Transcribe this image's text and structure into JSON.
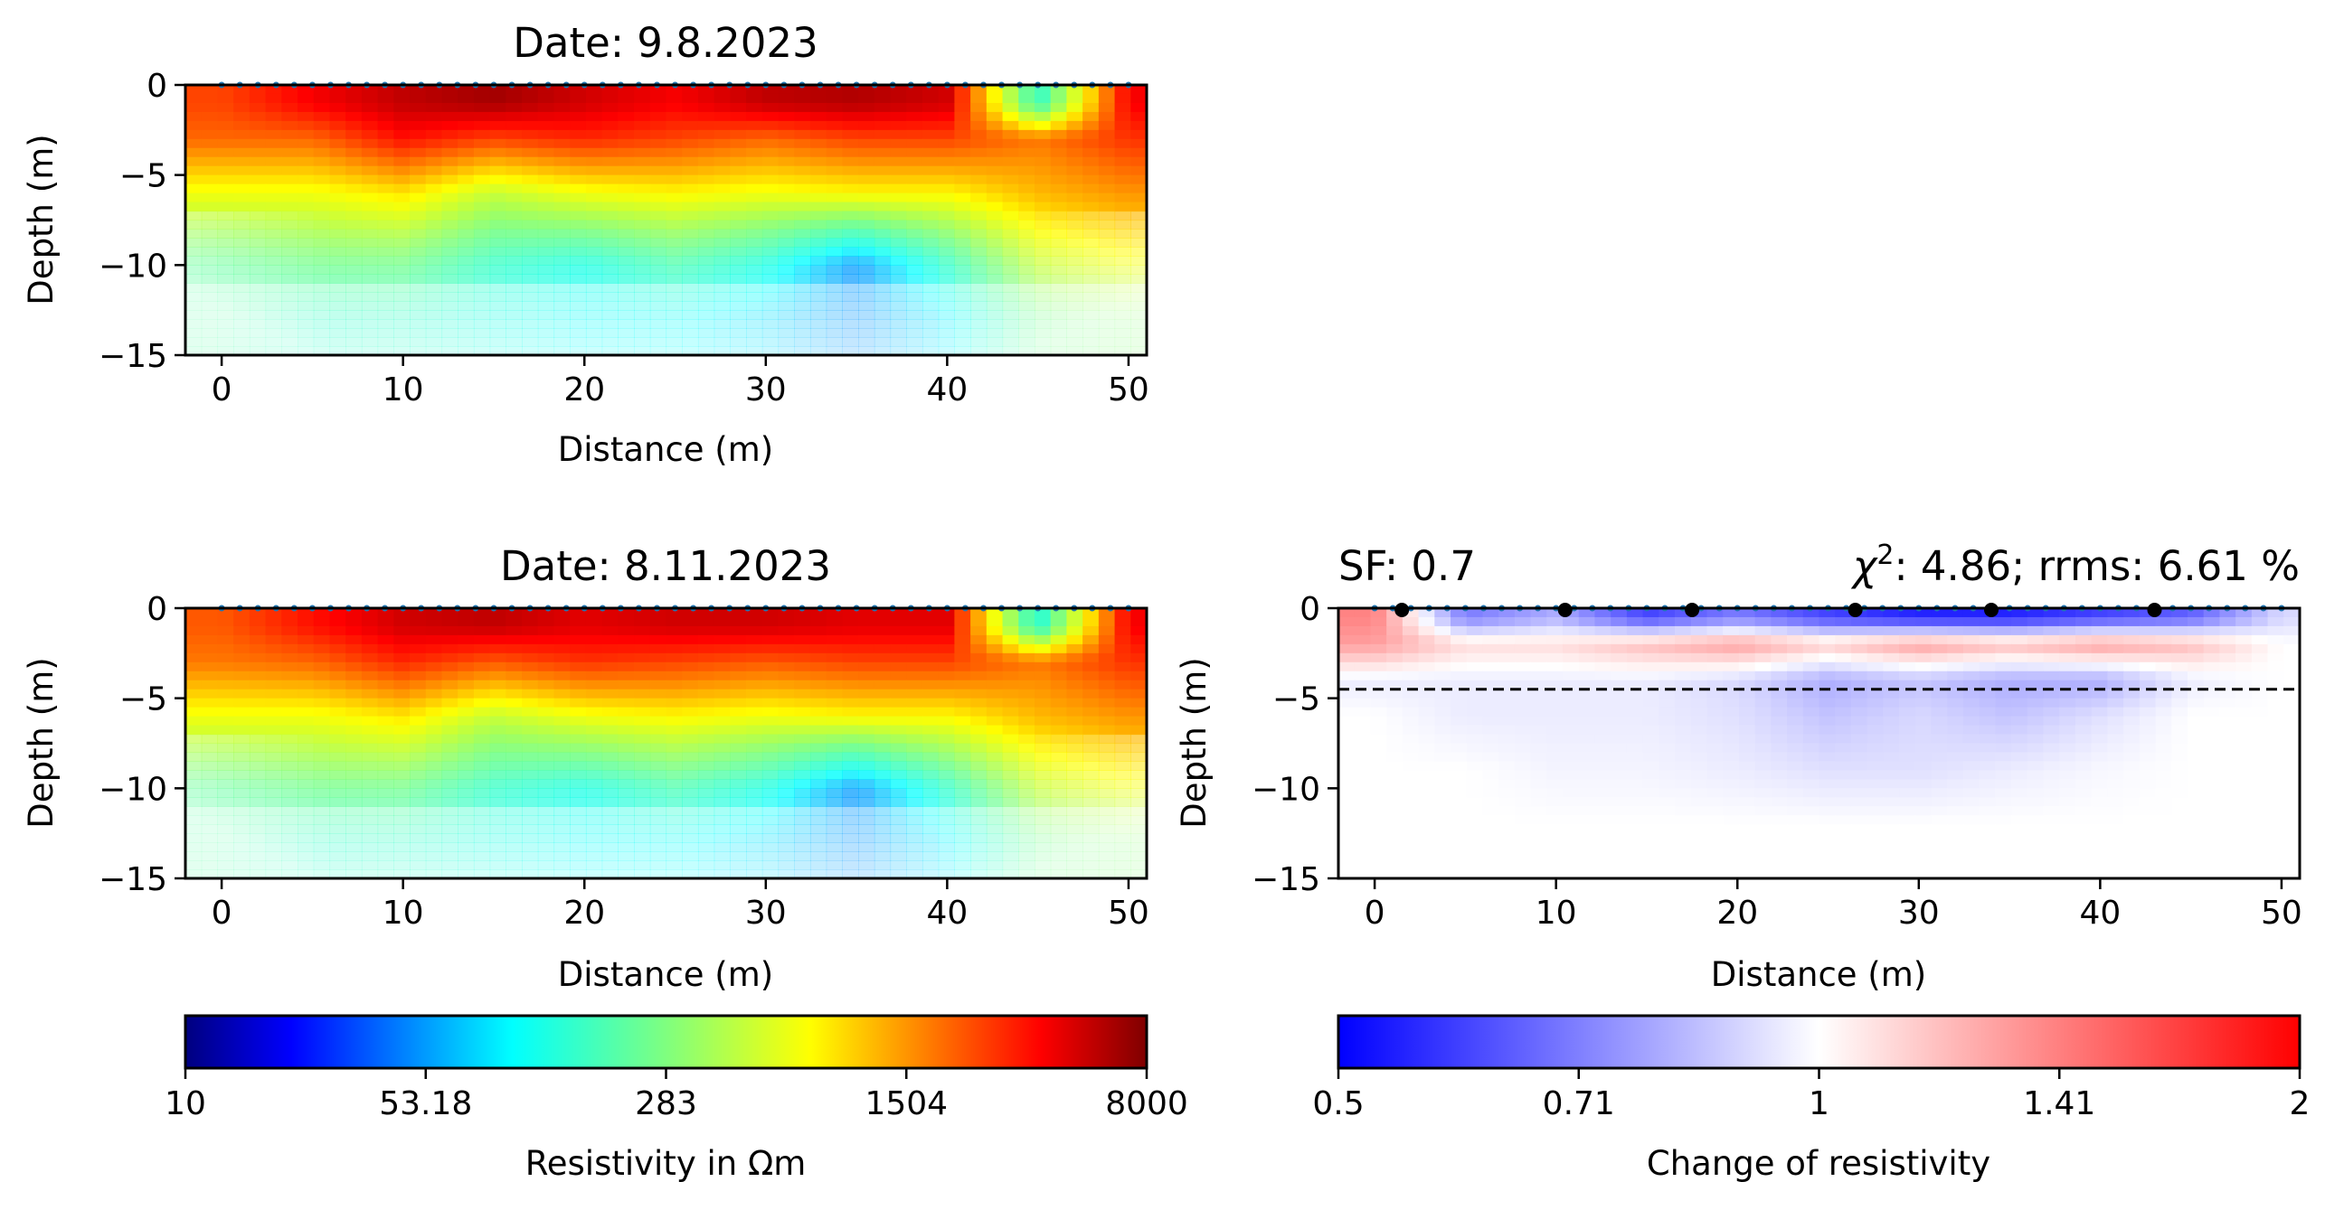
{
  "figure": {
    "panels": [
      {
        "id": "p1",
        "title": "Date: 9.8.2023",
        "xlabel": "Distance (m)",
        "ylabel": "Depth (m)",
        "xticks": [
          0,
          10,
          20,
          30,
          40,
          50
        ],
        "yticks": [
          0,
          -5,
          -10,
          -15
        ],
        "ytick_labels": [
          "0",
          "−5",
          "−10",
          "−15"
        ]
      },
      {
        "id": "p2",
        "title": "Date: 8.11.2023",
        "xlabel": "Distance (m)",
        "ylabel": "Depth (m)",
        "xticks": [
          0,
          10,
          20,
          30,
          40,
          50
        ],
        "yticks": [
          0,
          -5,
          -10,
          -15
        ],
        "ytick_labels": [
          "0",
          "−5",
          "−10",
          "−15"
        ]
      },
      {
        "id": "p3",
        "title_left": "SF: 0.7",
        "title_right_chi": "χ",
        "title_right_sup": "2",
        "title_right_rest": ": 4.86; rrms: 6.61 %",
        "xlabel": "Distance (m)",
        "ylabel": "Depth (m)",
        "xticks": [
          0,
          10,
          20,
          30,
          40,
          50
        ],
        "yticks": [
          0,
          -5,
          -10,
          -15
        ],
        "ytick_labels": [
          "0",
          "−5",
          "−10",
          "−15"
        ]
      }
    ],
    "colorbars": [
      {
        "id": "cb-resistivity",
        "label": "Resistivity in Ωm",
        "tick_labels": [
          "10",
          "53.18",
          "283",
          "1504",
          "8000"
        ],
        "colormap": "jet",
        "scale": "log"
      },
      {
        "id": "cb-change",
        "label": "Change of resistivity",
        "tick_labels": [
          "0.5",
          "0.71",
          "1",
          "1.41",
          "2"
        ],
        "colormap": "bwr",
        "scale": "log"
      }
    ]
  },
  "chart_data": [
    {
      "type": "heatmap",
      "title": "Date: 9.8.2023",
      "xlabel": "Distance (m)",
      "ylabel": "Depth (m)",
      "xlim": [
        -2,
        51
      ],
      "ylim": [
        -15,
        0
      ],
      "z_label": "Resistivity in Ωm",
      "z_range": [
        10,
        8000
      ],
      "z_scale": "log",
      "colormap": "jet",
      "x": [
        0,
        5,
        10,
        15,
        20,
        25,
        30,
        35,
        40,
        45,
        50
      ],
      "y": [
        -1,
        -3,
        -6,
        -10,
        -13
      ],
      "z": [
        [
          2500,
          4000,
          5500,
          6500,
          5000,
          4000,
          5500,
          6000,
          5000,
          150,
          4000
        ],
        [
          2000,
          2000,
          3500,
          2500,
          3000,
          2500,
          2000,
          2500,
          2500,
          1800,
          2800
        ],
        [
          700,
          700,
          900,
          500,
          700,
          800,
          700,
          800,
          800,
          1200,
          1500
        ],
        [
          220,
          250,
          250,
          150,
          120,
          180,
          120,
          50,
          150,
          500,
          700
        ],
        [
          200,
          150,
          150,
          120,
          100,
          100,
          80,
          50,
          90,
          250,
          300
        ]
      ],
      "electrodes_y": 0,
      "electrodes_x_range": [
        0,
        50
      ]
    },
    {
      "type": "heatmap",
      "title": "Date: 8.11.2023",
      "xlabel": "Distance (m)",
      "ylabel": "Depth (m)",
      "xlim": [
        -2,
        51
      ],
      "ylim": [
        -15,
        0
      ],
      "z_label": "Resistivity in Ωm",
      "z_range": [
        10,
        8000
      ],
      "z_scale": "log",
      "colormap": "jet",
      "x": [
        0,
        5,
        10,
        15,
        20,
        25,
        30,
        35,
        40,
        45,
        50
      ],
      "y": [
        -1,
        -3,
        -6,
        -10,
        -13
      ],
      "z": [
        [
          2200,
          3500,
          5000,
          5500,
          4500,
          5000,
          5000,
          4500,
          4500,
          130,
          4000
        ],
        [
          1800,
          2000,
          3000,
          2200,
          2800,
          2500,
          2200,
          2500,
          2500,
          1800,
          2800
        ],
        [
          700,
          700,
          900,
          500,
          700,
          800,
          700,
          800,
          800,
          1200,
          1500
        ],
        [
          220,
          250,
          250,
          150,
          120,
          180,
          120,
          50,
          150,
          500,
          700
        ],
        [
          200,
          150,
          150,
          120,
          100,
          100,
          80,
          50,
          90,
          250,
          300
        ]
      ],
      "electrodes_y": 0,
      "electrodes_x_range": [
        0,
        50
      ]
    },
    {
      "type": "heatmap",
      "title": "SF: 0.7    χ²: 4.86; rrms: 6.61 %",
      "xlabel": "Distance (m)",
      "ylabel": "Depth (m)",
      "xlim": [
        -2,
        51
      ],
      "ylim": [
        -15,
        0
      ],
      "z_label": "Change of resistivity",
      "z_range": [
        0.5,
        2
      ],
      "z_scale": "log",
      "colormap": "bwr",
      "dashed_line_depth": -4.5,
      "highlight_points_x": [
        1.5,
        10.5,
        17.5,
        26.5,
        34,
        43
      ],
      "highlight_points_y": 0,
      "x": [
        0,
        5,
        10,
        15,
        20,
        25,
        30,
        35,
        40,
        45,
        50
      ],
      "y": [
        -0.5,
        -2,
        -4,
        -6,
        -9,
        -12
      ],
      "z": [
        [
          1.4,
          0.7,
          0.8,
          0.6,
          0.7,
          0.6,
          0.55,
          0.55,
          0.6,
          0.65,
          0.9
        ],
        [
          1.3,
          1.1,
          1.1,
          1.2,
          1.3,
          1.15,
          1.3,
          1.2,
          1.3,
          1.2,
          1.0
        ],
        [
          0.95,
          0.95,
          0.95,
          0.95,
          0.9,
          0.8,
          0.85,
          0.8,
          0.8,
          0.95,
          1.0
        ],
        [
          1.0,
          0.95,
          0.95,
          0.95,
          0.92,
          0.85,
          0.9,
          0.85,
          0.92,
          1.0,
          1.0
        ],
        [
          1.0,
          1.0,
          0.97,
          0.97,
          0.95,
          0.92,
          0.92,
          0.95,
          0.98,
          1.0,
          1.0
        ],
        [
          1.0,
          1.0,
          1.0,
          1.0,
          1.0,
          1.0,
          1.0,
          1.0,
          1.0,
          1.0,
          1.0
        ]
      ]
    }
  ]
}
